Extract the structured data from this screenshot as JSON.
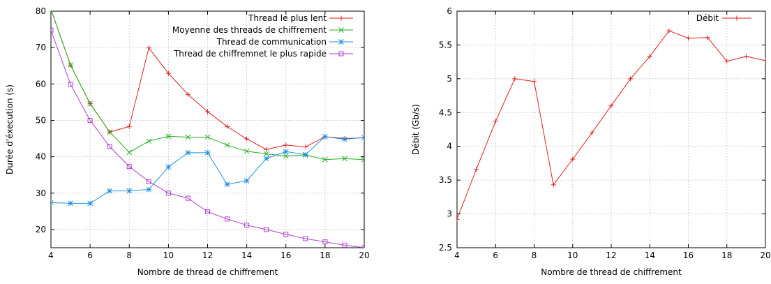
{
  "chart_data": [
    {
      "type": "line",
      "xlabel": "Nombre de thread de chiffrement",
      "ylabel": "Durée d'éxecution (s)",
      "xlim": [
        4,
        20
      ],
      "ylim": [
        15,
        80
      ],
      "xticks": [
        4,
        6,
        8,
        10,
        12,
        14,
        16,
        18,
        20
      ],
      "yticks": [
        20,
        30,
        40,
        50,
        60,
        70,
        80
      ],
      "grid": true,
      "legend_position": "top-right",
      "x": [
        4,
        5,
        6,
        7,
        8,
        9,
        10,
        11,
        12,
        13,
        14,
        15,
        16,
        17,
        18,
        19,
        20
      ],
      "series": [
        {
          "name": "Thread le plus lent",
          "color": "#e02020",
          "marker": "plus",
          "values": [
            80.5,
            65.2,
            54.6,
            46.8,
            48.3,
            69.9,
            62.9,
            57.1,
            52.4,
            48.3,
            44.9,
            42.0,
            43.2,
            42.7,
            45.5,
            45.0,
            45.2
          ]
        },
        {
          "name": "Moyenne des threads de chiffrement",
          "color": "#20b020",
          "marker": "x",
          "values": [
            80.5,
            65.2,
            54.6,
            46.8,
            41.2,
            44.3,
            45.6,
            45.4,
            45.4,
            43.2,
            41.5,
            40.8,
            40.2,
            40.5,
            39.2,
            39.5,
            39.2
          ]
        },
        {
          "name": "Thread de communication",
          "color": "#2090e0",
          "marker": "star",
          "values": [
            27.4,
            27.2,
            27.2,
            30.6,
            30.6,
            31.0,
            37.2,
            41.1,
            41.1,
            32.4,
            33.4,
            39.5,
            41.4,
            40.6,
            45.5,
            44.8,
            45.3
          ]
        },
        {
          "name": "Thread de chiffremnet le plus rapide",
          "color": "#b040d0",
          "marker": "square",
          "values": [
            74.8,
            59.9,
            50.0,
            42.8,
            37.3,
            33.2,
            30.0,
            28.6,
            24.9,
            22.9,
            21.2,
            20.0,
            18.7,
            17.5,
            16.6,
            15.7,
            15.0
          ]
        }
      ]
    },
    {
      "type": "line",
      "xlabel": "Nombre de thread de chiffrement",
      "ylabel": "Débit (Gb/s)",
      "xlim": [
        4,
        20
      ],
      "ylim": [
        2.5,
        6
      ],
      "xticks": [
        4,
        6,
        8,
        10,
        12,
        14,
        16,
        18,
        20
      ],
      "yticks": [
        2.5,
        3,
        3.5,
        4,
        4.5,
        5,
        5.5,
        6
      ],
      "grid": true,
      "legend_position": "top-right",
      "x": [
        4,
        5,
        6,
        7,
        8,
        9,
        10,
        11,
        12,
        13,
        14,
        15,
        16,
        17,
        18,
        19,
        20
      ],
      "series": [
        {
          "name": "Débit",
          "color": "#e02020",
          "marker": "plus",
          "values": [
            2.92,
            3.66,
            4.37,
            5.0,
            4.96,
            3.43,
            3.81,
            4.2,
            4.6,
            5.0,
            5.33,
            5.71,
            5.6,
            5.61,
            5.26,
            5.33,
            5.27
          ]
        }
      ]
    }
  ]
}
